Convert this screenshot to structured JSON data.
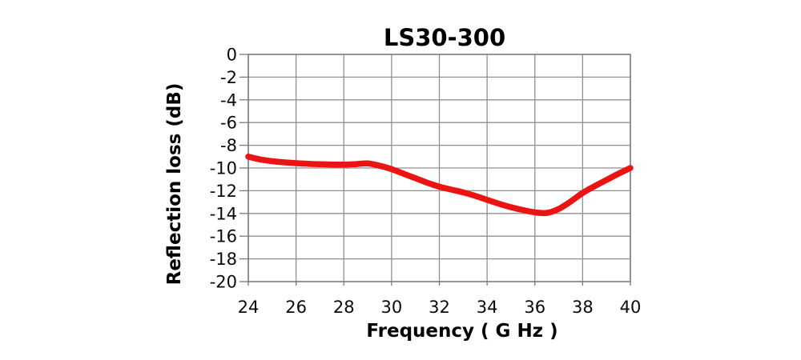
{
  "chart_data": {
    "type": "line",
    "title": "LS30-300",
    "xlabel": "Frequency ( G Hz )",
    "ylabel": "Reflection loss (dB)",
    "xlim": [
      24,
      40
    ],
    "ylim": [
      -20,
      0
    ],
    "x_ticks": [
      24,
      26,
      28,
      30,
      32,
      34,
      36,
      38,
      40
    ],
    "y_ticks": [
      0,
      -2,
      -4,
      -6,
      -8,
      -10,
      -12,
      -14,
      -16,
      -18,
      -20
    ],
    "grid": true,
    "legend": false,
    "line_color": "#ec1313",
    "grid_color": "#8f8f8f",
    "axis_color": "#7a7a7a",
    "background": "#ffffff",
    "series": [
      {
        "name": "LS30-300",
        "x": [
          24,
          24.5,
          25,
          25.5,
          26,
          26.5,
          27,
          27.5,
          28,
          28.5,
          29,
          29.5,
          30,
          30.5,
          31,
          31.5,
          32,
          32.5,
          33,
          33.5,
          34,
          34.5,
          35,
          35.5,
          36,
          36.5,
          37,
          37.5,
          38,
          38.5,
          39,
          39.5,
          40
        ],
        "y": [
          -9.0,
          -9.25,
          -9.4,
          -9.5,
          -9.58,
          -9.63,
          -9.67,
          -9.7,
          -9.7,
          -9.66,
          -9.6,
          -9.8,
          -10.1,
          -10.5,
          -10.9,
          -11.3,
          -11.65,
          -11.9,
          -12.15,
          -12.45,
          -12.8,
          -13.15,
          -13.45,
          -13.7,
          -13.9,
          -13.95,
          -13.6,
          -12.95,
          -12.2,
          -11.6,
          -11.05,
          -10.5,
          -10.0
        ]
      }
    ]
  }
}
